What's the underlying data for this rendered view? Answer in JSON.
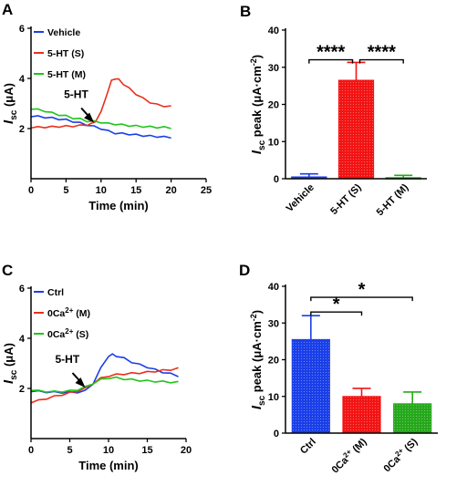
{
  "panels": [
    {
      "letter": "A",
      "chart_data": {
        "type": "line",
        "xlabel": "Time (min)",
        "ylabel_main": "I",
        "ylabel_sub": "sc",
        "ylabel_unit": " (μA)",
        "xlim": [
          0,
          25
        ],
        "ylim": [
          0,
          6
        ],
        "xticks": [
          0,
          5,
          10,
          15,
          20,
          25
        ],
        "yticks": [
          2,
          4,
          6
        ],
        "legend_position": "top-left",
        "annotation": {
          "text": "5-HT",
          "x": 9,
          "y": 2.2
        },
        "series": [
          {
            "name": "Vehicle",
            "color": "#1a3fe8",
            "x": [
              0,
              1,
              2,
              3,
              4,
              5,
              6,
              7,
              8,
              9,
              10,
              11,
              12,
              13,
              14,
              15,
              16,
              17,
              18,
              19,
              20
            ],
            "y": [
              2.5,
              2.48,
              2.45,
              2.42,
              2.38,
              2.35,
              2.28,
              2.22,
              2.15,
              2.08,
              2.0,
              1.9,
              1.82,
              1.8,
              1.78,
              1.75,
              1.72,
              1.7,
              1.68,
              1.66,
              1.65
            ]
          },
          {
            "name": "5-HT (S)",
            "color": "#e8301c",
            "x": [
              0,
              1,
              2,
              3,
              4,
              5,
              6,
              7,
              8,
              8.6,
              9.2,
              10,
              10.8,
              11.5,
              12,
              12.5,
              13.2,
              14,
              15,
              16,
              17,
              18,
              19,
              20
            ],
            "y": [
              2.05,
              2.05,
              2.06,
              2.07,
              2.08,
              2.09,
              2.1,
              2.12,
              2.15,
              2.18,
              2.3,
              2.65,
              3.35,
              3.9,
              4.0,
              3.95,
              3.78,
              3.6,
              3.38,
              3.2,
              3.05,
              2.95,
              2.9,
              2.88
            ]
          },
          {
            "name": "5-HT (M)",
            "color": "#22c41a",
            "x": [
              0,
              1,
              2,
              3,
              4,
              5,
              6,
              7,
              8,
              9,
              10,
              11,
              12,
              13,
              14,
              15,
              16,
              17,
              18,
              19,
              20
            ],
            "y": [
              2.8,
              2.75,
              2.7,
              2.62,
              2.55,
              2.5,
              2.42,
              2.38,
              2.3,
              2.28,
              2.25,
              2.2,
              2.18,
              2.15,
              2.12,
              2.1,
              2.08,
              2.07,
              2.05,
              2.05,
              2.03
            ]
          }
        ]
      }
    },
    {
      "letter": "B",
      "chart_data": {
        "type": "bar",
        "ylabel_main": "I",
        "ylabel_sub": "sc",
        "ylabel_unit": " peak (μA·cm",
        "ylabel_sup": "-2",
        "ylabel_end": ")",
        "ylim": [
          0,
          40
        ],
        "yticks": [
          0,
          10,
          20,
          30,
          40
        ],
        "categories": [
          {
            "label": "Vehicle",
            "base": "Vehicle",
            "sup": "",
            "tail": ""
          },
          {
            "label": "5-HT (S)",
            "base": "5-HT (S)",
            "sup": "",
            "tail": ""
          },
          {
            "label": "5-HT (M)",
            "base": "5-HT (M)",
            "sup": "",
            "tail": ""
          }
        ],
        "values": [
          0.5,
          26.5,
          0.3
        ],
        "errors": [
          0.8,
          4.8,
          0.6
        ],
        "colors": [
          "#1a3fe8",
          "#f21414",
          "#26a81c"
        ],
        "significance": [
          {
            "from": 0,
            "to": 1,
            "label": "****",
            "y": 32
          },
          {
            "from": 1,
            "to": 2,
            "label": "****",
            "y": 32
          }
        ]
      }
    },
    {
      "letter": "C",
      "chart_data": {
        "type": "line",
        "xlabel": "Time (min)",
        "ylabel_main": "I",
        "ylabel_sub": "sc",
        "ylabel_unit": " (μA)",
        "xlim": [
          0,
          20
        ],
        "ylim": [
          0,
          6
        ],
        "xticks": [
          0,
          5,
          10,
          15,
          20
        ],
        "yticks": [
          2,
          4,
          6
        ],
        "legend_position": "top-left",
        "annotation": {
          "text": "5-HT",
          "x": 7,
          "y": 2.0
        },
        "series": [
          {
            "name": "Ctrl",
            "base": "Ctrl",
            "sup": "",
            "tail": "",
            "color": "#1a3fe8",
            "x": [
              0,
              1,
              2,
              3,
              4,
              5,
              6,
              7,
              8,
              9,
              10,
              10.5,
              11,
              12,
              13,
              14,
              15,
              16,
              17,
              18,
              19
            ],
            "y": [
              1.9,
              1.88,
              1.86,
              1.85,
              1.84,
              1.84,
              1.85,
              1.9,
              2.2,
              2.8,
              3.3,
              3.35,
              3.3,
              3.2,
              3.05,
              2.95,
              2.85,
              2.75,
              2.65,
              2.58,
              2.5
            ]
          },
          {
            "name": "0Ca2+ (M)",
            "base": "0Ca",
            "sup": "2+",
            "tail": " (M)",
            "color": "#e8301c",
            "x": [
              0,
              1,
              2,
              3,
              4,
              5,
              6,
              7,
              8,
              9,
              10,
              11,
              12,
              13,
              14,
              15,
              16,
              17,
              18,
              19
            ],
            "y": [
              1.45,
              1.52,
              1.6,
              1.68,
              1.75,
              1.82,
              1.9,
              2.0,
              2.2,
              2.4,
              2.5,
              2.55,
              2.58,
              2.6,
              2.62,
              2.65,
              2.68,
              2.72,
              2.75,
              2.8
            ]
          },
          {
            "name": "0Ca2+ (S)",
            "base": "0Ca",
            "sup": "2+",
            "tail": " (S)",
            "color": "#22c41a",
            "x": [
              0,
              1,
              2,
              3,
              4,
              5,
              6,
              7,
              8,
              9,
              10,
              11,
              12,
              13,
              14,
              15,
              16,
              17,
              18,
              19
            ],
            "y": [
              1.95,
              1.9,
              1.88,
              1.87,
              1.88,
              1.9,
              1.95,
              2.05,
              2.2,
              2.35,
              2.42,
              2.42,
              2.38,
              2.35,
              2.32,
              2.3,
              2.28,
              2.27,
              2.25,
              2.25
            ]
          }
        ]
      }
    },
    {
      "letter": "D",
      "chart_data": {
        "type": "bar",
        "ylabel_main": "I",
        "ylabel_sub": "sc",
        "ylabel_unit": " peak (μA·cm",
        "ylabel_sup": "-2",
        "ylabel_end": ")",
        "ylim": [
          0,
          40
        ],
        "yticks": [
          0,
          10,
          20,
          30,
          40
        ],
        "categories": [
          {
            "label": "Ctrl",
            "base": "Ctrl",
            "sup": "",
            "tail": ""
          },
          {
            "label": "0Ca2+ (M)",
            "base": "0Ca",
            "sup": "2+",
            "tail": " (M)"
          },
          {
            "label": "0Ca2+ (S)",
            "base": "0Ca",
            "sup": "2+",
            "tail": " (S)"
          }
        ],
        "values": [
          25.5,
          10,
          8
        ],
        "errors": [
          6.5,
          2.2,
          3.2
        ],
        "colors": [
          "#1a3fe8",
          "#f21414",
          "#26a81c"
        ],
        "significance": [
          {
            "from": 0,
            "to": 1,
            "label": "*",
            "y": 33
          },
          {
            "from": 0,
            "to": 2,
            "label": "*",
            "y": 37
          }
        ]
      }
    }
  ]
}
